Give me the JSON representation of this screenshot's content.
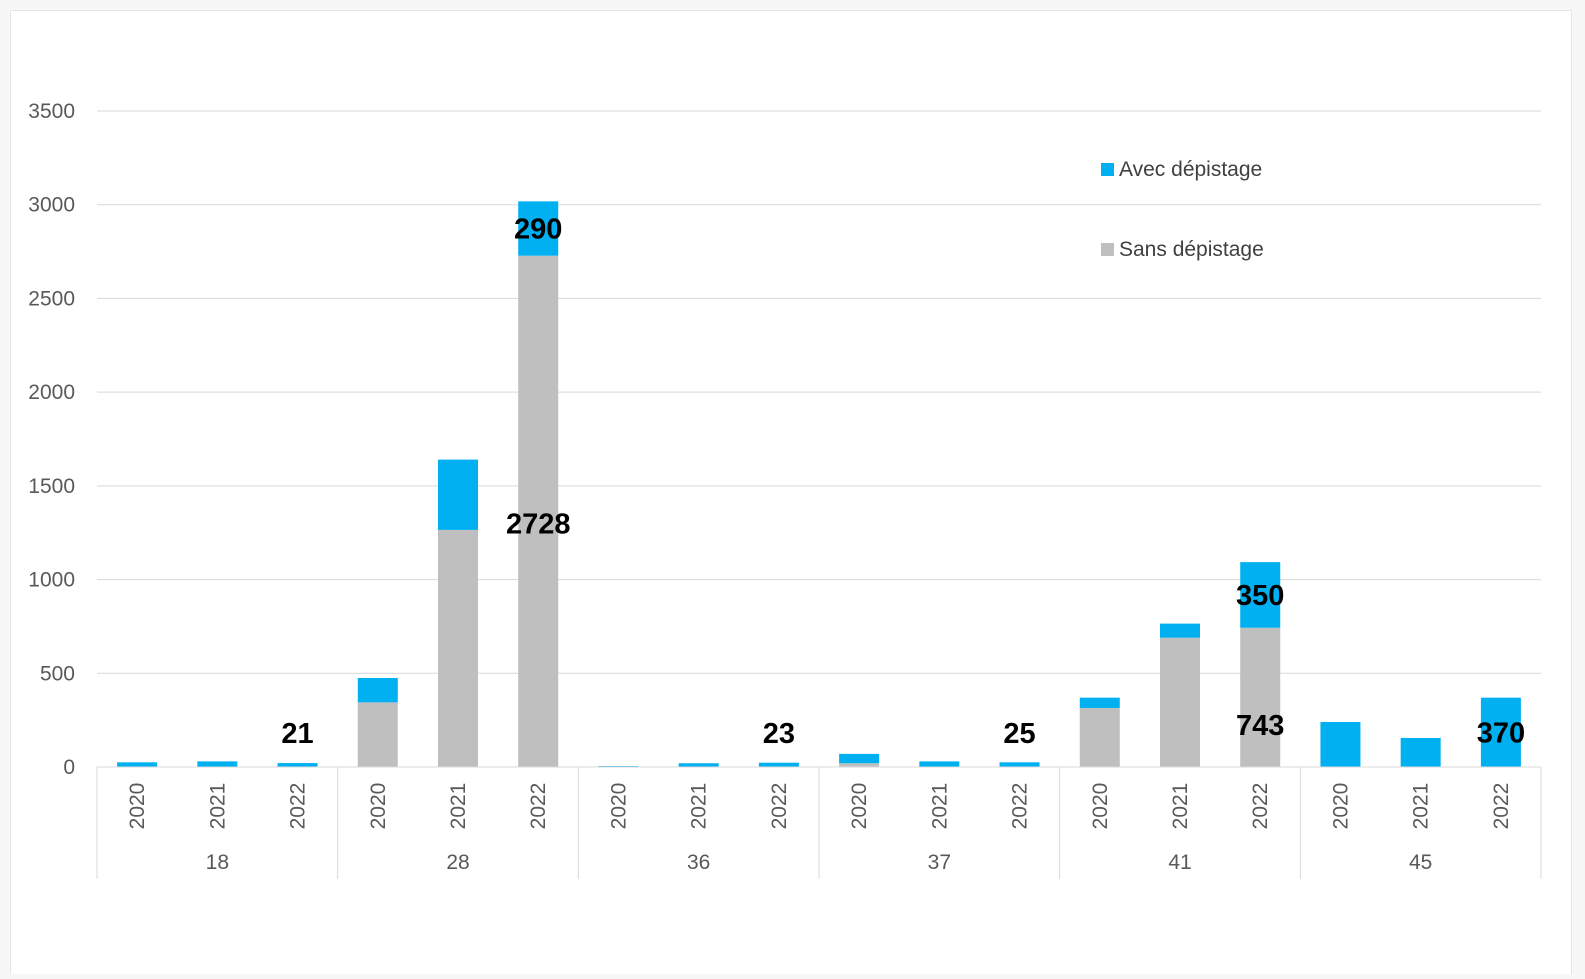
{
  "chart_data": {
    "type": "bar",
    "stacked": true,
    "title": "",
    "xlabel": "",
    "ylabel": "",
    "ylim": [
      0,
      3500
    ],
    "yticks": [
      0,
      500,
      1000,
      1500,
      2000,
      2500,
      3000,
      3500
    ],
    "grid": true,
    "legend_position": "top-right",
    "groups": [
      "18",
      "28",
      "36",
      "37",
      "41",
      "45"
    ],
    "categories": [
      "2020",
      "2021",
      "2022",
      "2020",
      "2021",
      "2022",
      "2020",
      "2021",
      "2022",
      "2020",
      "2021",
      "2022",
      "2020",
      "2021",
      "2022",
      "2020",
      "2021",
      "2022"
    ],
    "series": [
      {
        "name": "Sans dépistage",
        "color": "#bfbfbf",
        "values": [
          0,
          0,
          0,
          345,
          1265,
          2728,
          0,
          0,
          0,
          20,
          0,
          0,
          315,
          690,
          743,
          0,
          0,
          0
        ]
      },
      {
        "name": "Avec dépistage",
        "color": "#00b0f0",
        "values": [
          25,
          30,
          21,
          130,
          375,
          290,
          5,
          20,
          23,
          50,
          30,
          25,
          55,
          75,
          350,
          240,
          155,
          370
        ]
      }
    ],
    "data_labels": [
      {
        "text": "21",
        "index": 2,
        "series": 1
      },
      {
        "text": "290",
        "index": 5,
        "series": 1
      },
      {
        "text": "2728",
        "index": 5,
        "series": 0
      },
      {
        "text": "23",
        "index": 8,
        "series": 1
      },
      {
        "text": "25",
        "index": 11,
        "series": 1
      },
      {
        "text": "350",
        "index": 14,
        "series": 1
      },
      {
        "text": "743",
        "index": 14,
        "series": 0
      },
      {
        "text": "370",
        "index": 17,
        "series": 1
      }
    ]
  }
}
